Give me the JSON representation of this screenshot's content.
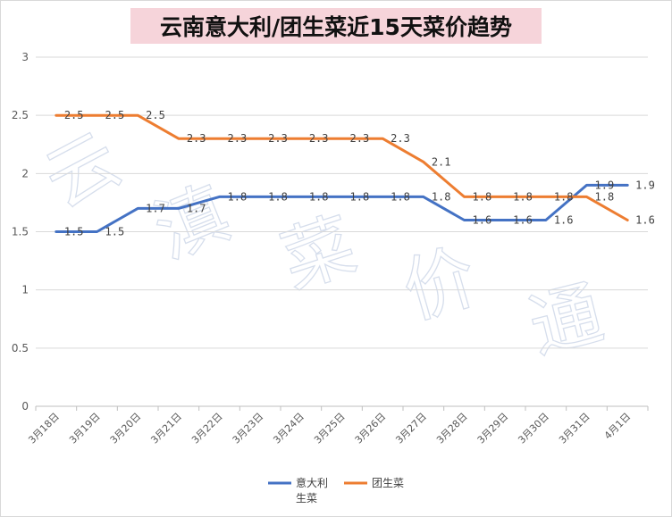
{
  "colors": {
    "series1": "#4472c4",
    "series2": "#ed7d31",
    "grid": "#d9d9d9",
    "title_bg": "#f6d4da"
  },
  "watermark": [
    "云",
    "滇",
    "菜",
    "价",
    "通"
  ],
  "chart_data": {
    "type": "line",
    "title": "云南意大利/团生菜近15天菜价趋势",
    "xlabel": "",
    "ylabel": "",
    "ylim": [
      0,
      3
    ],
    "yticks": [
      "0",
      "0.5",
      "1",
      "1.5",
      "2",
      "2.5",
      "3"
    ],
    "grid": true,
    "legend_position": "bottom",
    "categories": [
      "3月18日",
      "3月19日",
      "3月20日",
      "3月21日",
      "3月22日",
      "3月23日",
      "3月24日",
      "3月25日",
      "3月26日",
      "3月27日",
      "3月28日",
      "3月29日",
      "3月30日",
      "3月31日",
      "4月1日"
    ],
    "series": [
      {
        "name": "意大利生菜",
        "legend_lines": [
          "意大利",
          "生菜"
        ],
        "values": [
          1.5,
          1.5,
          1.7,
          1.7,
          1.8,
          1.8,
          1.8,
          1.8,
          1.8,
          1.8,
          1.6,
          1.6,
          1.6,
          1.9,
          1.9
        ]
      },
      {
        "name": "团生菜",
        "legend_lines": [
          "团生菜"
        ],
        "values": [
          2.5,
          2.5,
          2.5,
          2.3,
          2.3,
          2.3,
          2.3,
          2.3,
          2.3,
          2.1,
          1.8,
          1.8,
          1.8,
          1.8,
          1.6
        ]
      }
    ]
  }
}
